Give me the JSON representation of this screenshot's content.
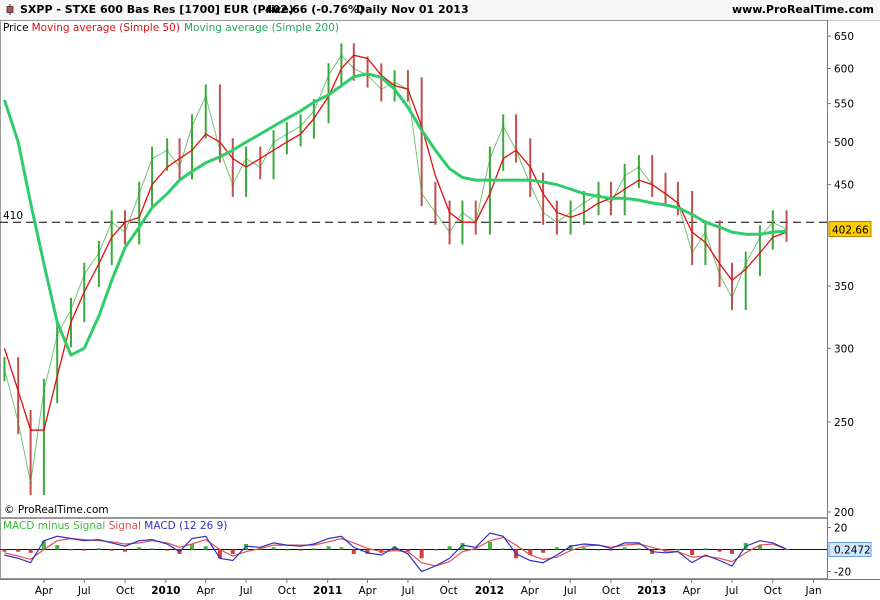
{
  "header": {
    "title": "SXPP - STXE 600 Bas Res [1700] EUR (Price)",
    "price_change": "402.66 (-0.76%)",
    "period": "Daily  Nov 01 2013",
    "site": "www.ProRealTime.com"
  },
  "legend": {
    "price": "Price",
    "ma50": "Moving average (Simple 50)",
    "ma200": "Moving average (Simple 200)"
  },
  "macd_legend": {
    "diff": "MACD minus Signal",
    "signal": "Signal",
    "macd": "MACD (12 26 9)"
  },
  "copyright": "© ProRealTime.com",
  "colors": {
    "ma50": "#e01010",
    "ma200": "#2fcc6a",
    "up_bar": "#3aa83a",
    "down_bar": "#c0504d",
    "macd": "#3030c0",
    "signal": "#e05050",
    "hist_pos": "#3cb83c",
    "hist_neg": "#d04040",
    "last_price_bg": "#ffcc00",
    "macd_value_bg": "#cfe6ff"
  },
  "reference_line": {
    "label": "410",
    "value": 410
  },
  "last_price_label": "402.66",
  "macd_value_label": "0.2472",
  "chart_data": [
    {
      "type": "line",
      "title": "SXPP - STXE 600 Bas Res [1700] EUR (Price)",
      "scale": "log",
      "ylim": [
        200,
        660
      ],
      "y_ticks": [
        "650",
        "600",
        "550",
        "500",
        "450",
        "350",
        "300",
        "250",
        "200"
      ],
      "x_ticks": [
        "Apr",
        "Jul",
        "Oct",
        "2010",
        "Apr",
        "Jul",
        "Oct",
        "2011",
        "Apr",
        "Jul",
        "Oct",
        "2012",
        "Apr",
        "Jul",
        "Oct",
        "2013",
        "Apr",
        "Jul",
        "Oct",
        "Jan"
      ],
      "x_ticks_bold": [
        "2010",
        "2011",
        "2012",
        "2013"
      ],
      "x": [
        "2009-01-02",
        "2009-02-02",
        "2009-03-02",
        "2009-04-01",
        "2009-05-01",
        "2009-06-01",
        "2009-07-01",
        "2009-08-03",
        "2009-09-01",
        "2009-10-01",
        "2009-11-02",
        "2009-12-01",
        "2010-01-04",
        "2010-02-01",
        "2010-03-01",
        "2010-04-01",
        "2010-05-03",
        "2010-06-01",
        "2010-07-01",
        "2010-08-02",
        "2010-09-01",
        "2010-10-01",
        "2010-11-01",
        "2010-12-01",
        "2011-01-03",
        "2011-02-01",
        "2011-03-01",
        "2011-04-01",
        "2011-05-02",
        "2011-06-01",
        "2011-07-01",
        "2011-08-01",
        "2011-09-01",
        "2011-10-03",
        "2011-11-01",
        "2011-12-01",
        "2012-01-02",
        "2012-02-01",
        "2012-03-01",
        "2012-04-02",
        "2012-05-01",
        "2012-06-01",
        "2012-07-02",
        "2012-08-01",
        "2012-09-03",
        "2012-10-01",
        "2012-11-01",
        "2012-12-03",
        "2013-01-02",
        "2013-02-01",
        "2013-03-01",
        "2013-04-02",
        "2013-05-02",
        "2013-06-03",
        "2013-07-01",
        "2013-08-01",
        "2013-09-02",
        "2013-10-01",
        "2013-11-01"
      ],
      "series": [
        {
          "name": "Price",
          "values": [
            285,
            250,
            215,
            270,
            310,
            330,
            360,
            380,
            410,
            400,
            440,
            480,
            490,
            470,
            520,
            560,
            490,
            450,
            480,
            470,
            500,
            510,
            520,
            540,
            590,
            620,
            600,
            590,
            570,
            580,
            570,
            440,
            420,
            400,
            420,
            410,
            480,
            520,
            490,
            450,
            420,
            410,
            420,
            430,
            440,
            430,
            460,
            470,
            450,
            440,
            430,
            380,
            400,
            360,
            340,
            370,
            395,
            410,
            402.66
          ]
        },
        {
          "name": "Moving average (Simple 50)",
          "values": [
            300,
            270,
            245,
            245,
            280,
            320,
            345,
            370,
            395,
            410,
            415,
            450,
            470,
            480,
            490,
            510,
            500,
            480,
            470,
            480,
            490,
            500,
            510,
            530,
            560,
            600,
            620,
            615,
            590,
            575,
            570,
            520,
            460,
            420,
            410,
            410,
            440,
            480,
            490,
            470,
            440,
            420,
            415,
            420,
            430,
            435,
            445,
            455,
            450,
            440,
            430,
            400,
            390,
            370,
            355,
            365,
            380,
            395,
            400
          ]
        },
        {
          "name": "Moving average (Simple 200)",
          "values": [
            555,
            500,
            430,
            370,
            320,
            295,
            300,
            325,
            355,
            385,
            405,
            425,
            440,
            455,
            465,
            475,
            482,
            490,
            500,
            510,
            520,
            530,
            540,
            552,
            562,
            575,
            588,
            592,
            587,
            570,
            545,
            515,
            490,
            468,
            458,
            455,
            455,
            455,
            455,
            455,
            453,
            450,
            445,
            440,
            437,
            435,
            435,
            433,
            430,
            428,
            425,
            418,
            410,
            405,
            400,
            398,
            398,
            400,
            401
          ]
        }
      ]
    },
    {
      "type": "line",
      "title": "MACD (12 26 9)",
      "ylim": [
        -25,
        25
      ],
      "y_ticks": [
        "20",
        "-20"
      ],
      "series": [
        {
          "name": "MACD (12 26 9)",
          "values": [
            -5,
            -8,
            -12,
            8,
            12,
            10,
            8,
            9,
            6,
            3,
            8,
            9,
            5,
            -2,
            10,
            12,
            -8,
            -10,
            3,
            2,
            6,
            4,
            3,
            5,
            10,
            12,
            2,
            -3,
            -5,
            2,
            -4,
            -20,
            -15,
            -8,
            4,
            2,
            15,
            12,
            -4,
            -10,
            -12,
            -5,
            3,
            5,
            4,
            1,
            6,
            6,
            -2,
            -3,
            -2,
            -12,
            -5,
            -10,
            -15,
            3,
            8,
            6,
            0.4
          ]
        },
        {
          "name": "Signal",
          "values": [
            -3,
            -6,
            -9,
            0,
            8,
            10,
            9,
            8,
            7,
            5,
            6,
            8,
            6,
            2,
            5,
            9,
            0,
            -6,
            -2,
            1,
            4,
            4,
            4,
            4,
            7,
            10,
            6,
            1,
            -2,
            -1,
            -2,
            -12,
            -15,
            -11,
            -2,
            1,
            8,
            11,
            4,
            -5,
            -9,
            -7,
            -1,
            3,
            4,
            2,
            4,
            5,
            2,
            -1,
            -2,
            -7,
            -6,
            -8,
            -11,
            -3,
            4,
            5,
            0.15
          ]
        },
        {
          "name": "MACD minus Signal",
          "values": [
            -2,
            -2,
            -3,
            8,
            4,
            0,
            -1,
            1,
            -1,
            -2,
            2,
            1,
            -1,
            -4,
            5,
            3,
            -8,
            -4,
            5,
            1,
            2,
            0,
            -1,
            1,
            3,
            2,
            -4,
            -4,
            -3,
            3,
            -2,
            -8,
            0,
            3,
            6,
            1,
            7,
            1,
            -8,
            -5,
            -3,
            2,
            4,
            2,
            0,
            -1,
            2,
            1,
            -4,
            -2,
            0,
            -5,
            1,
            -2,
            -4,
            6,
            4,
            1,
            0.2472
          ]
        }
      ]
    }
  ]
}
